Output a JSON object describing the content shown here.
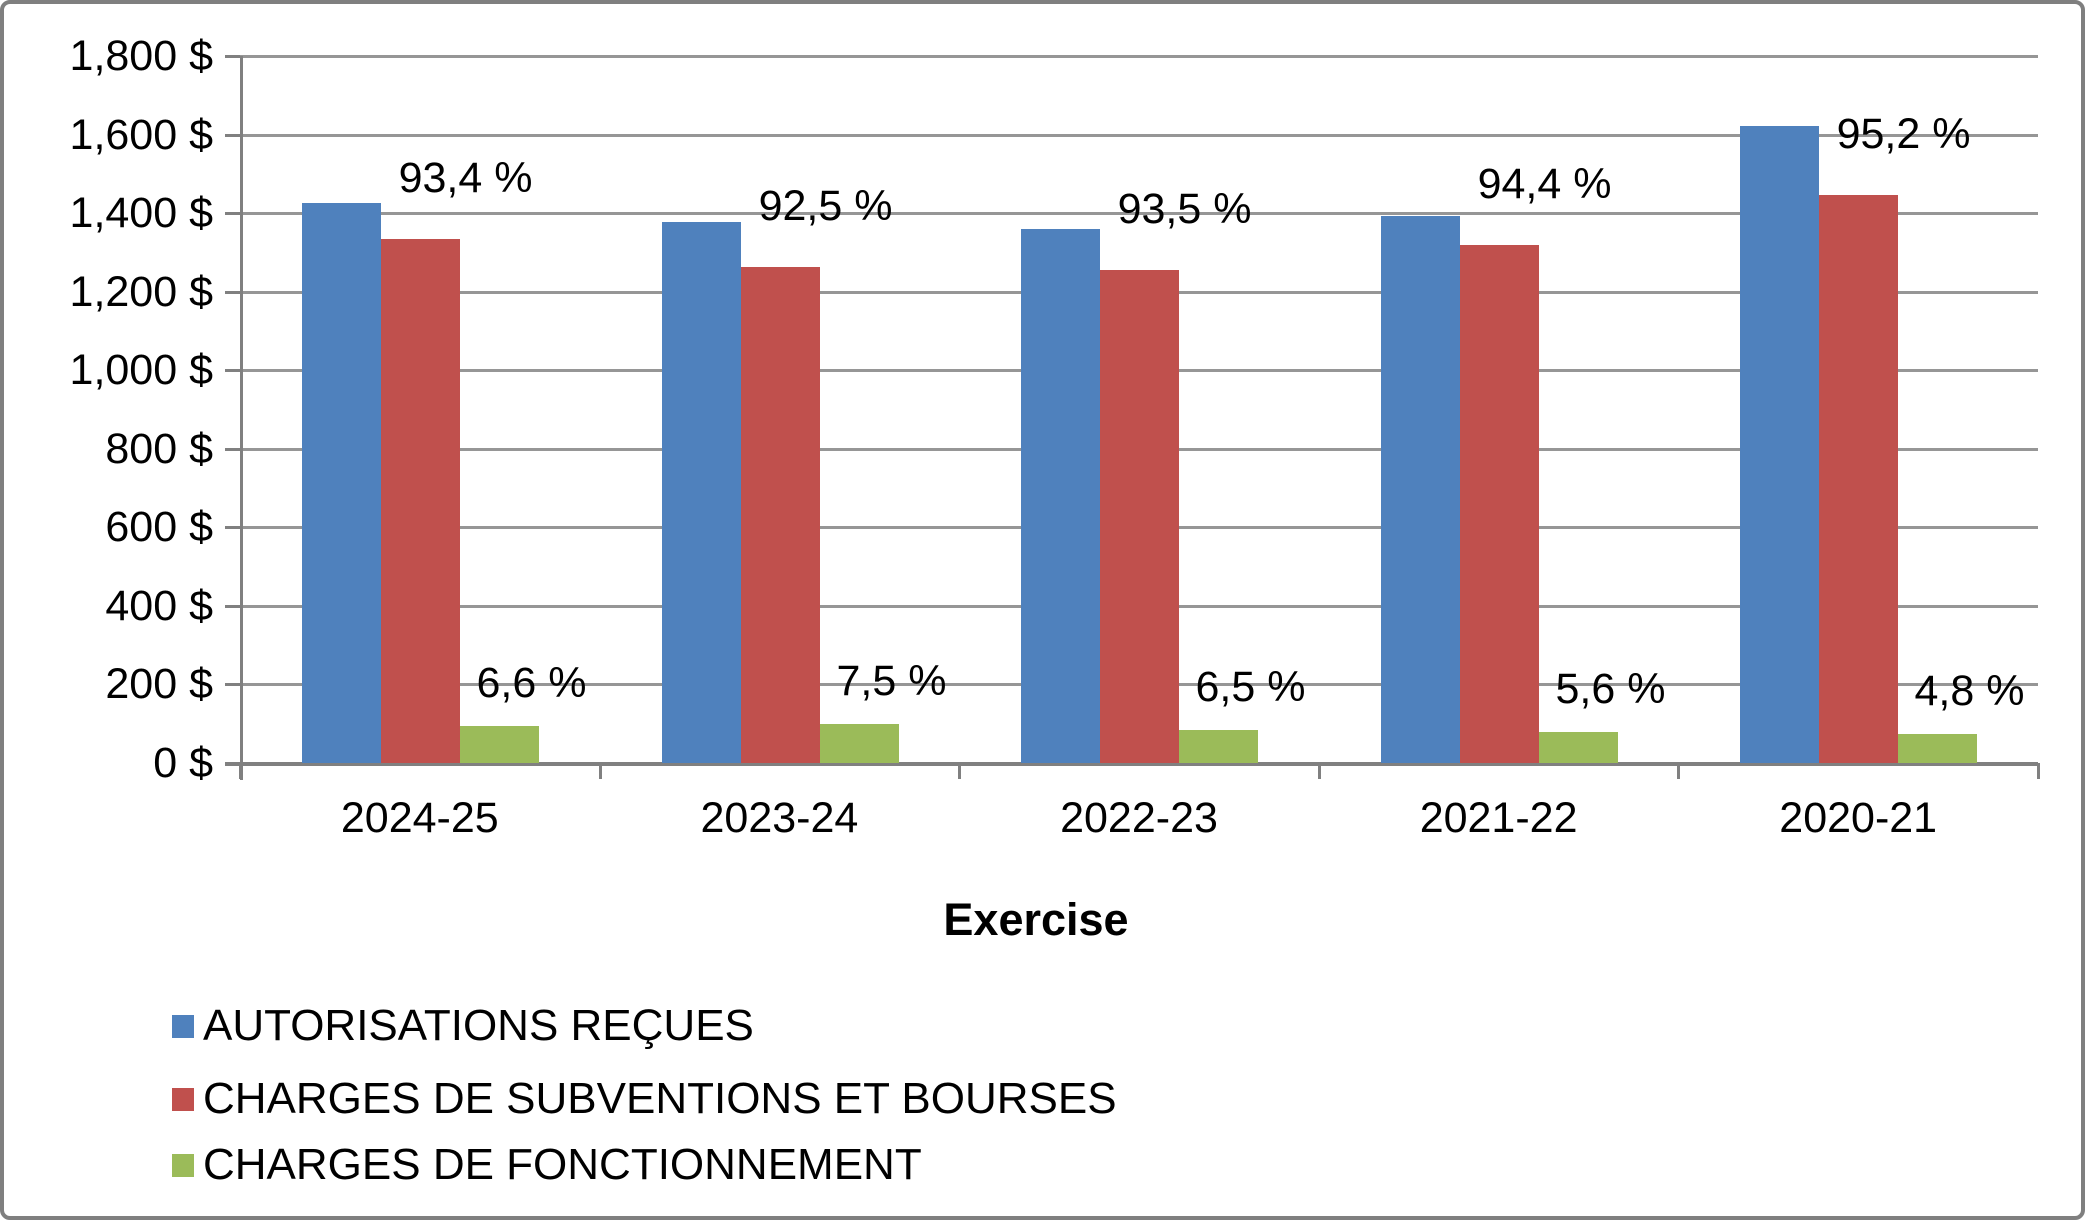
{
  "chart_data": {
    "type": "bar",
    "title": "",
    "xlabel": "Exercise",
    "ylabel": "",
    "categories": [
      "2024-25",
      "2023-24",
      "2022-23",
      "2021-22",
      "2020-21"
    ],
    "series": [
      {
        "name": "AUTORISATIONS REÇUES",
        "color": "#4f81bd",
        "values": [
          1425,
          1378,
          1360,
          1393,
          1622
        ],
        "labels": [
          "",
          "",
          "",
          "",
          ""
        ]
      },
      {
        "name": "CHARGES DE SUBVENTIONS ET BOURSES",
        "color": "#c0504d",
        "values": [
          1335,
          1262,
          1255,
          1320,
          1445
        ],
        "labels": [
          "93,4 %",
          "92,5 %",
          "93,5 %",
          "94,4 %",
          "95,2 %"
        ]
      },
      {
        "name": "CHARGES DE FONCTIONNEMENT",
        "color": "#9bbb59",
        "values": [
          95,
          100,
          85,
          80,
          75
        ],
        "labels": [
          "6,6 %",
          "7,5 %",
          "6,5 %",
          "5,6 %",
          "4,8 %"
        ]
      }
    ],
    "y_ticks": [
      "1,800 $",
      "1,600 $",
      "1,400 $",
      "1,200 $",
      "1,000 $",
      "800 $",
      "600 $",
      "400 $",
      "200 $",
      "0 $"
    ],
    "ylim": [
      0,
      1800
    ],
    "grid": true,
    "legend_position": "bottom-left",
    "gridline_color": "#969696",
    "axis_color": "#808080",
    "text_color": "#000000"
  }
}
